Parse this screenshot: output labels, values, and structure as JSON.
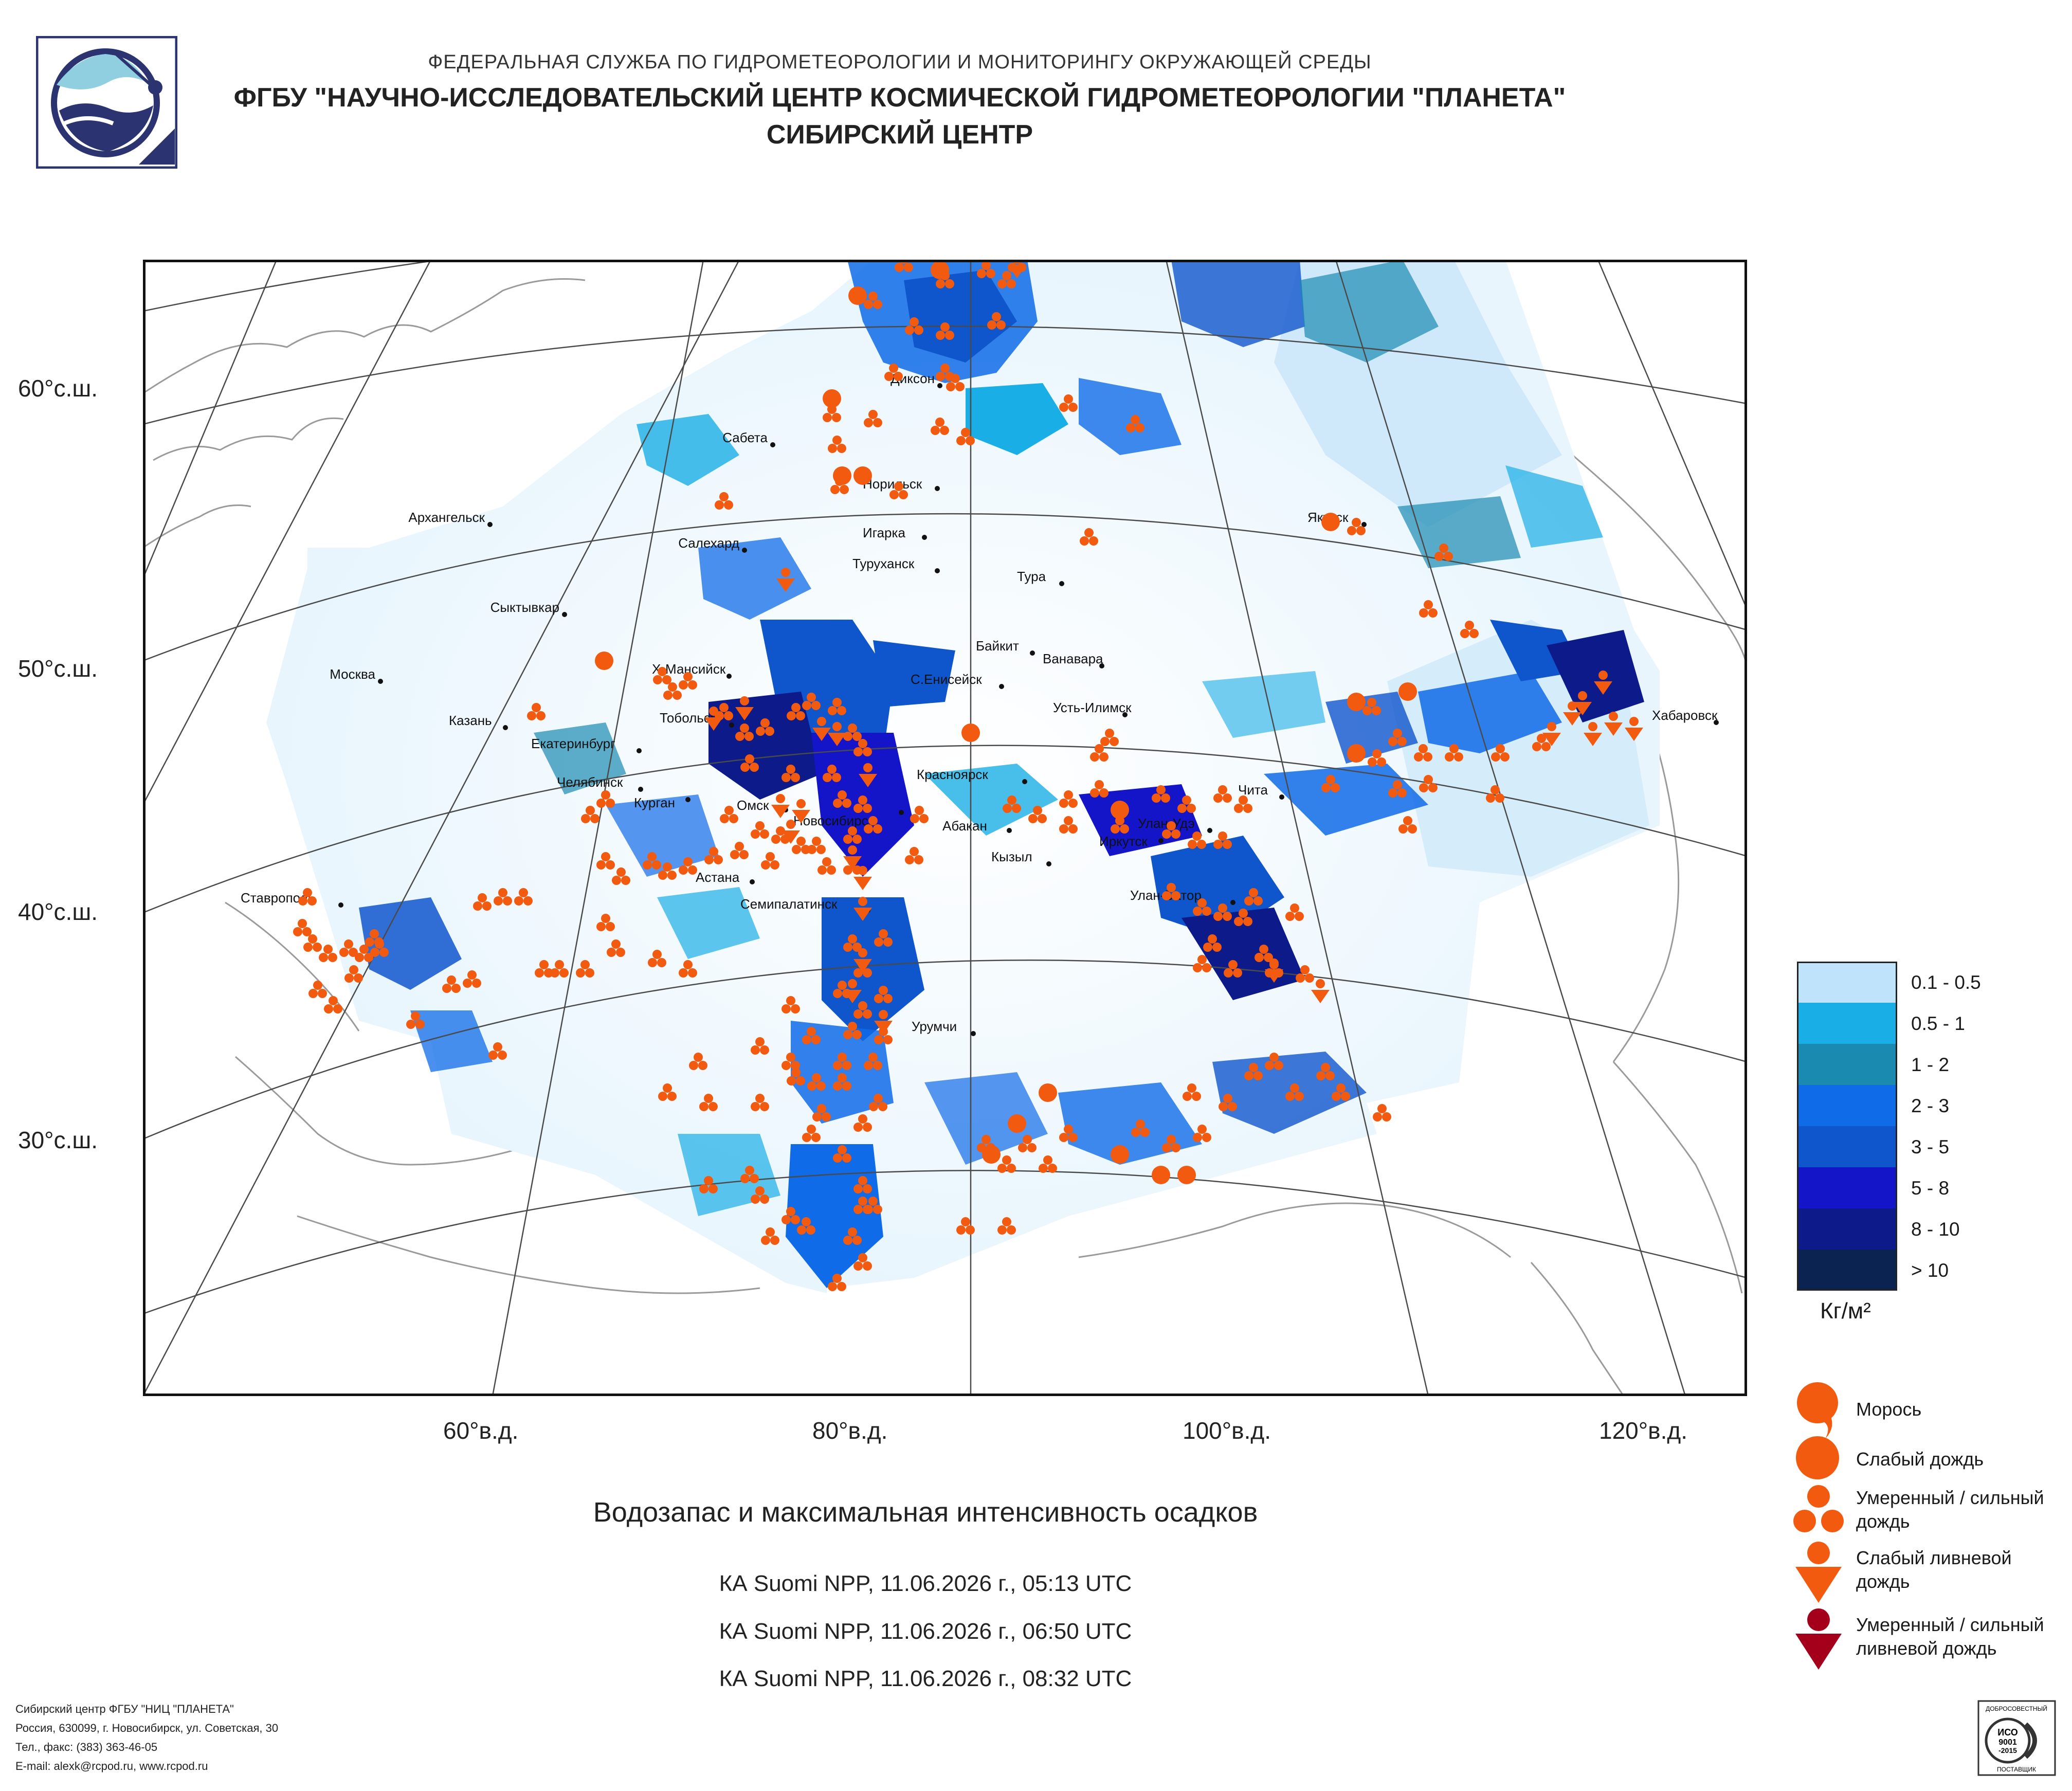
{
  "header": {
    "line1": "ФЕДЕРАЛЬНАЯ СЛУЖБА ПО ГИДРОМЕТЕОРОЛОГИИ И МОНИТОРИНГУ ОКРУЖАЮЩЕЙ СРЕДЫ",
    "line2": "ФГБУ \"НАУЧНО-ИССЛЕДОВАТЕЛЬСКИЙ ЦЕНТР КОСМИЧЕСКОЙ ГИДРОМЕТЕОРОЛОГИИ \"ПЛАНЕТА\"",
    "line3": "СИБИРСКИЙ ЦЕНТР"
  },
  "latitude_labels": [
    "60°с.ш.",
    "50°с.ш.",
    "40°с.ш.",
    "30°с.ш."
  ],
  "longitude_labels": [
    "60°в.д.",
    "80°в.д.",
    "100°в.д.",
    "120°в.д."
  ],
  "cities": [
    "Диксон",
    "Сабета",
    "Норильск",
    "Архангельск",
    "Игарка",
    "Салехард",
    "Туруханск",
    "Тура",
    "Якутск",
    "Сыктывкар",
    "Байкит",
    "Ванавара",
    "Москва",
    "Х-Мансийск",
    "С.Енисейск",
    "Усть-Илимск",
    "Хабаровск",
    "Казань",
    "Тобольск",
    "Екатеринбург",
    "Красноярск",
    "Чита",
    "Челябинск",
    "Курган",
    "Омск",
    "Новосибирск",
    "Абакан",
    "Улан-Удэ",
    "Иркутск",
    "Кызыл",
    "Астана",
    "Ставрополь",
    "Семипалатинск",
    "Улан-Батор",
    "Урумчи"
  ],
  "legend": {
    "bins": [
      {
        "label": "0.1 - 0.5",
        "color": "#bfe3fa"
      },
      {
        "label": "0.5 - 1",
        "color": "#1aaee6"
      },
      {
        "label": "1 - 2",
        "color": "#1a8ab0"
      },
      {
        "label": "2 - 3",
        "color": "#0f6be8"
      },
      {
        "label": "3 - 5",
        "color": "#0f55cc"
      },
      {
        "label": "5 - 8",
        "color": "#1414c8"
      },
      {
        "label": "8 - 10",
        "color": "#0c1a8a"
      },
      {
        "label": "> 10",
        "color": "#0a2350"
      }
    ],
    "units": "Кг/м²"
  },
  "precip_legend": [
    {
      "label": "Морось",
      "icon": "drizzle-icon",
      "color": "#f25a0f"
    },
    {
      "label": "Слабый дождь",
      "icon": "light-rain-icon",
      "color": "#f25a0f"
    },
    {
      "label": "Умеренный / сильный дождь",
      "icon": "moderate-rain-icon",
      "color": "#f25a0f"
    },
    {
      "label": "Слабый ливневой дождь",
      "icon": "light-shower-icon",
      "color": "#f25a0f"
    },
    {
      "label": "Умеренный / сильный ливневой дождь",
      "icon": "heavy-shower-icon",
      "color": "#a4001c"
    }
  ],
  "title": "Водозапас и максимальная интенсивность осадков",
  "passes": [
    "КА Suomi NPP, 11.06.2026 г., 05:13 UTC",
    "КА Suomi NPP, 11.06.2026 г., 06:50 UTC",
    "КА Suomi NPP, 11.06.2026 г., 08:32 UTC"
  ],
  "footer": {
    "line1": "Сибирский центр ФГБУ \"НИЦ \"ПЛАНЕТА\"",
    "line2": "Россия, 630099, г. Новосибирск, ул. Советская, 30",
    "line3": "Тел., факс: (383) 363-46-05",
    "line4": "E-mail: alexk@rcpod.ru, www.rcpod.ru"
  },
  "certificate": {
    "top": "ДОБРОСОВЕСТНЫЙ",
    "std1": "ИСО",
    "std2": "9001",
    "std3": "-2015",
    "bottom": "ПОСТАВЩИК"
  }
}
